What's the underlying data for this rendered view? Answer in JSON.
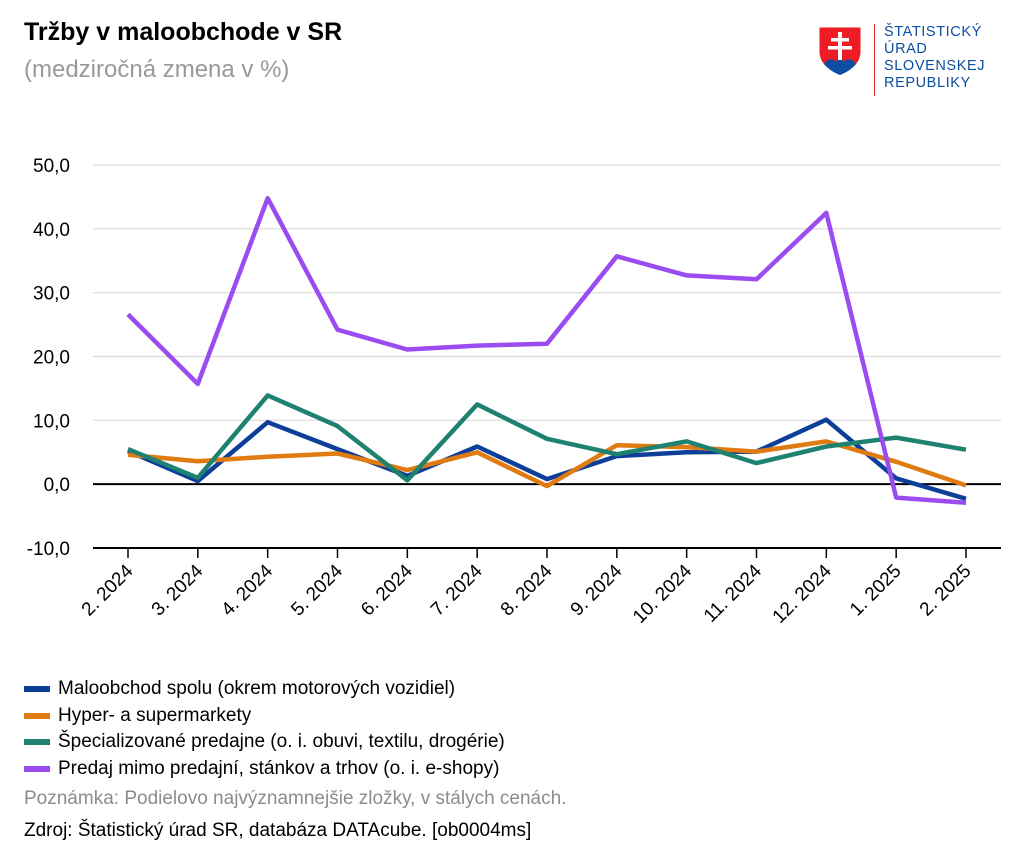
{
  "header": {
    "title": "Tržby v maloobchode v SR",
    "subtitle": "(medziročná zmena v %)"
  },
  "logo": {
    "lines": [
      "ŠTATISTICKÝ",
      "ÚRAD",
      "SLOVENSKEJ",
      "REPUBLIKY"
    ],
    "colors": {
      "text": "#0b4ea2",
      "shield": "#ee1c25",
      "cross": "#ffffff",
      "hills": "#0b4ea2"
    }
  },
  "chart_data": {
    "type": "line",
    "title": "Tržby v maloobchode v SR",
    "subtitle": "(medziročná zmena v %)",
    "xlabel": "",
    "ylabel": "",
    "ylim": [
      -10,
      50
    ],
    "yticks": [
      -10,
      0,
      10,
      20,
      30,
      40,
      50
    ],
    "ytick_labels": [
      "-10,0",
      "0,0",
      "10,0",
      "20,0",
      "30,0",
      "40,0",
      "50,0"
    ],
    "grid": true,
    "legend_position": "bottom-left",
    "categories": [
      "2. 2024",
      "3. 2024",
      "4. 2024",
      "5. 2024",
      "6. 2024",
      "7. 2024",
      "8. 2024",
      "9. 2024",
      "10. 2024",
      "11. 2024",
      "12. 2024",
      "1. 2025",
      "2. 2025"
    ],
    "series": [
      {
        "name": "Maloobchod spolu (okrem motorových vozidiel)",
        "color": "#0d3f99",
        "values": [
          5.2,
          0.5,
          9.7,
          5.5,
          1.3,
          5.9,
          0.8,
          4.4,
          5.0,
          5.1,
          10.1,
          0.9,
          -2.3
        ]
      },
      {
        "name": "Hyper- a supermarkety",
        "color": "#e07b12",
        "values": [
          4.6,
          3.6,
          4.3,
          4.8,
          2.2,
          5.0,
          -0.3,
          6.1,
          5.8,
          5.1,
          6.7,
          3.5,
          -0.2
        ]
      },
      {
        "name": "Špecializované predajne (o. i. obuvi, textilu, drogérie)",
        "color": "#1f8270",
        "values": [
          5.5,
          1.0,
          13.9,
          9.1,
          0.6,
          12.5,
          7.1,
          4.7,
          6.7,
          3.3,
          5.9,
          7.3,
          5.4
        ]
      },
      {
        "name": "Predaj mimo predajní, stánkov a trhov (o. i. e-shopy)",
        "color": "#9b4cf0",
        "values": [
          26.6,
          15.7,
          44.8,
          24.2,
          21.1,
          21.7,
          22.0,
          35.7,
          32.7,
          32.1,
          42.5,
          -2.1,
          -2.9
        ]
      }
    ]
  },
  "footer": {
    "note": "Poznámka: Podielovo najvýznamnejšie zložky, v stálych cenách.",
    "source": "Zdroj: Štatistický úrad SR, databáza DATAcube. [ob0004ms]"
  }
}
